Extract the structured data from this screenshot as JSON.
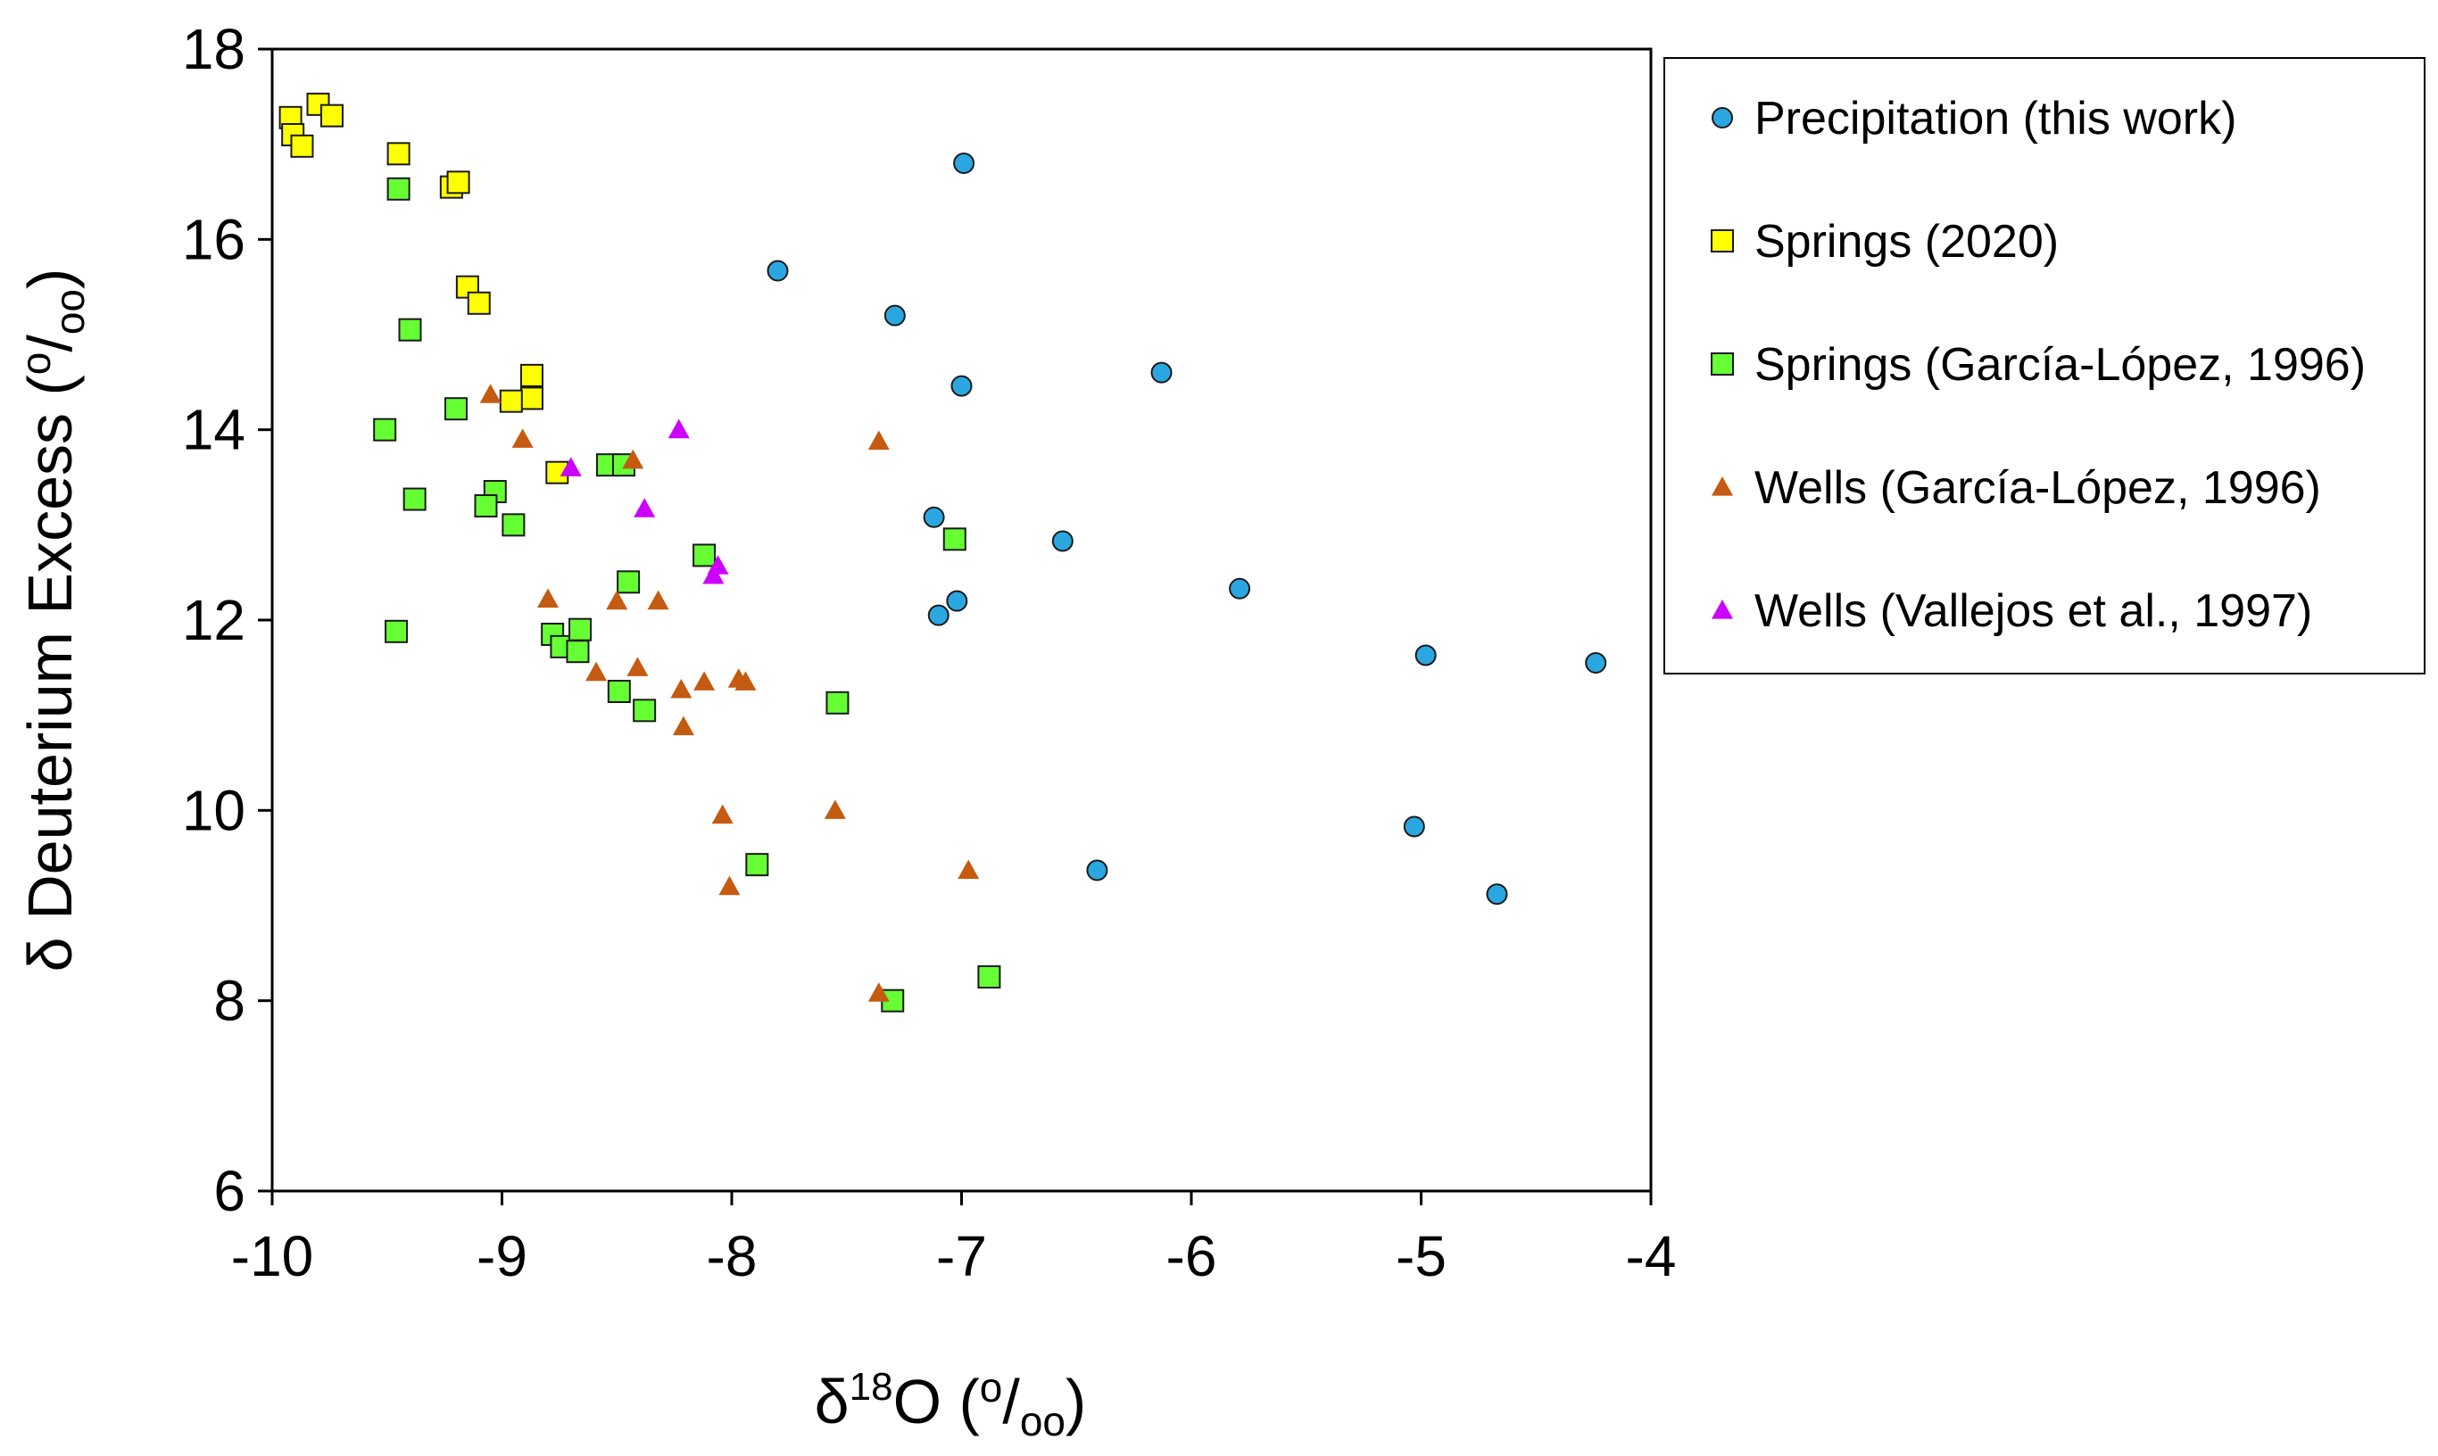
{
  "chart_data": {
    "type": "scatter",
    "xlabel": {
      "base": "δ",
      "sup": "18",
      "rest": "O (",
      "unit_sup": "o",
      "unit_slash": "/",
      "unit_sub": "oo",
      "close": ")"
    },
    "ylabel": {
      "text": "δ Deuterium Excess (",
      "unit_sup": "o",
      "unit_slash": "/",
      "unit_sub": "oo",
      "close": ")"
    },
    "xlim": [
      -10,
      -4
    ],
    "ylim": [
      6,
      18
    ],
    "x_ticks": [
      -10,
      -9,
      -8,
      -7,
      -6,
      -5,
      -4
    ],
    "y_ticks": [
      6,
      8,
      10,
      12,
      14,
      16,
      18
    ],
    "x_tick_labels": [
      "-10",
      "-9",
      "-8",
      "-7",
      "-6",
      "-5",
      "-4"
    ],
    "y_tick_labels": [
      "6",
      "8",
      "10",
      "12",
      "14",
      "16",
      "18"
    ],
    "grid": false,
    "legend_position": "right",
    "series": [
      {
        "name": "Precipitation (this work)",
        "marker": "circle",
        "color": "#2AA7E0",
        "points": [
          [
            -6.99,
            16.8
          ],
          [
            -7.8,
            15.67
          ],
          [
            -7.29,
            15.2
          ],
          [
            -7.0,
            14.46
          ],
          [
            -6.13,
            14.6
          ],
          [
            -7.12,
            13.08
          ],
          [
            -7.02,
            12.2
          ],
          [
            -7.1,
            12.05
          ],
          [
            -6.56,
            12.83
          ],
          [
            -5.79,
            12.33
          ],
          [
            -4.98,
            11.63
          ],
          [
            -4.24,
            11.55
          ],
          [
            -6.41,
            9.37
          ],
          [
            -5.03,
            9.83
          ],
          [
            -4.67,
            9.12
          ]
        ]
      },
      {
        "name": "Springs (2020)",
        "marker": "square",
        "color": "#FFFF00",
        "points": [
          [
            -9.92,
            17.28
          ],
          [
            -9.91,
            17.1
          ],
          [
            -9.87,
            16.98
          ],
          [
            -9.8,
            17.42
          ],
          [
            -9.74,
            17.3
          ],
          [
            -9.45,
            16.9
          ],
          [
            -9.22,
            16.55
          ],
          [
            -9.19,
            16.6
          ],
          [
            -9.15,
            15.5
          ],
          [
            -9.1,
            15.33
          ],
          [
            -8.87,
            14.57
          ],
          [
            -8.87,
            14.33
          ],
          [
            -8.96,
            14.3
          ],
          [
            -8.76,
            13.55
          ]
        ]
      },
      {
        "name": "Springs (García-López, 1996)",
        "marker": "square",
        "color": "#66FF33",
        "points": [
          [
            -9.45,
            16.53
          ],
          [
            -9.4,
            15.05
          ],
          [
            -9.51,
            14.0
          ],
          [
            -9.2,
            14.22
          ],
          [
            -9.38,
            13.27
          ],
          [
            -9.03,
            13.35
          ],
          [
            -9.07,
            13.2
          ],
          [
            -8.95,
            13.0
          ],
          [
            -8.54,
            13.63
          ],
          [
            -8.47,
            13.63
          ],
          [
            -9.46,
            11.88
          ],
          [
            -8.12,
            12.68
          ],
          [
            -7.03,
            12.85
          ],
          [
            -8.45,
            12.4
          ],
          [
            -8.78,
            11.85
          ],
          [
            -8.74,
            11.72
          ],
          [
            -8.66,
            11.9
          ],
          [
            -8.67,
            11.67
          ],
          [
            -8.49,
            11.25
          ],
          [
            -8.38,
            11.05
          ],
          [
            -7.54,
            11.13
          ],
          [
            -7.89,
            9.43
          ],
          [
            -6.88,
            8.25
          ],
          [
            -7.3,
            8.0
          ]
        ]
      },
      {
        "name": "Wells (García-López, 1996)",
        "marker": "triangle",
        "color": "#C55A11",
        "points": [
          [
            -9.05,
            14.37
          ],
          [
            -8.91,
            13.9
          ],
          [
            -8.43,
            13.68
          ],
          [
            -7.36,
            13.88
          ],
          [
            -8.8,
            12.22
          ],
          [
            -8.5,
            12.2
          ],
          [
            -8.32,
            12.2
          ],
          [
            -8.59,
            11.45
          ],
          [
            -8.41,
            11.5
          ],
          [
            -8.22,
            11.27
          ],
          [
            -8.12,
            11.35
          ],
          [
            -7.97,
            11.38
          ],
          [
            -7.94,
            11.35
          ],
          [
            -8.21,
            10.88
          ],
          [
            -8.04,
            9.95
          ],
          [
            -7.55,
            10.0
          ],
          [
            -6.97,
            9.37
          ],
          [
            -8.01,
            9.2
          ],
          [
            -7.36,
            8.08
          ]
        ]
      },
      {
        "name": "Wells (Vallejos et al., 1997)",
        "marker": "triangle",
        "color": "#CC00FF",
        "points": [
          [
            -8.23,
            14.0
          ],
          [
            -8.7,
            13.6
          ],
          [
            -8.38,
            13.17
          ],
          [
            -8.06,
            12.57
          ],
          [
            -8.08,
            12.47
          ]
        ]
      }
    ]
  }
}
